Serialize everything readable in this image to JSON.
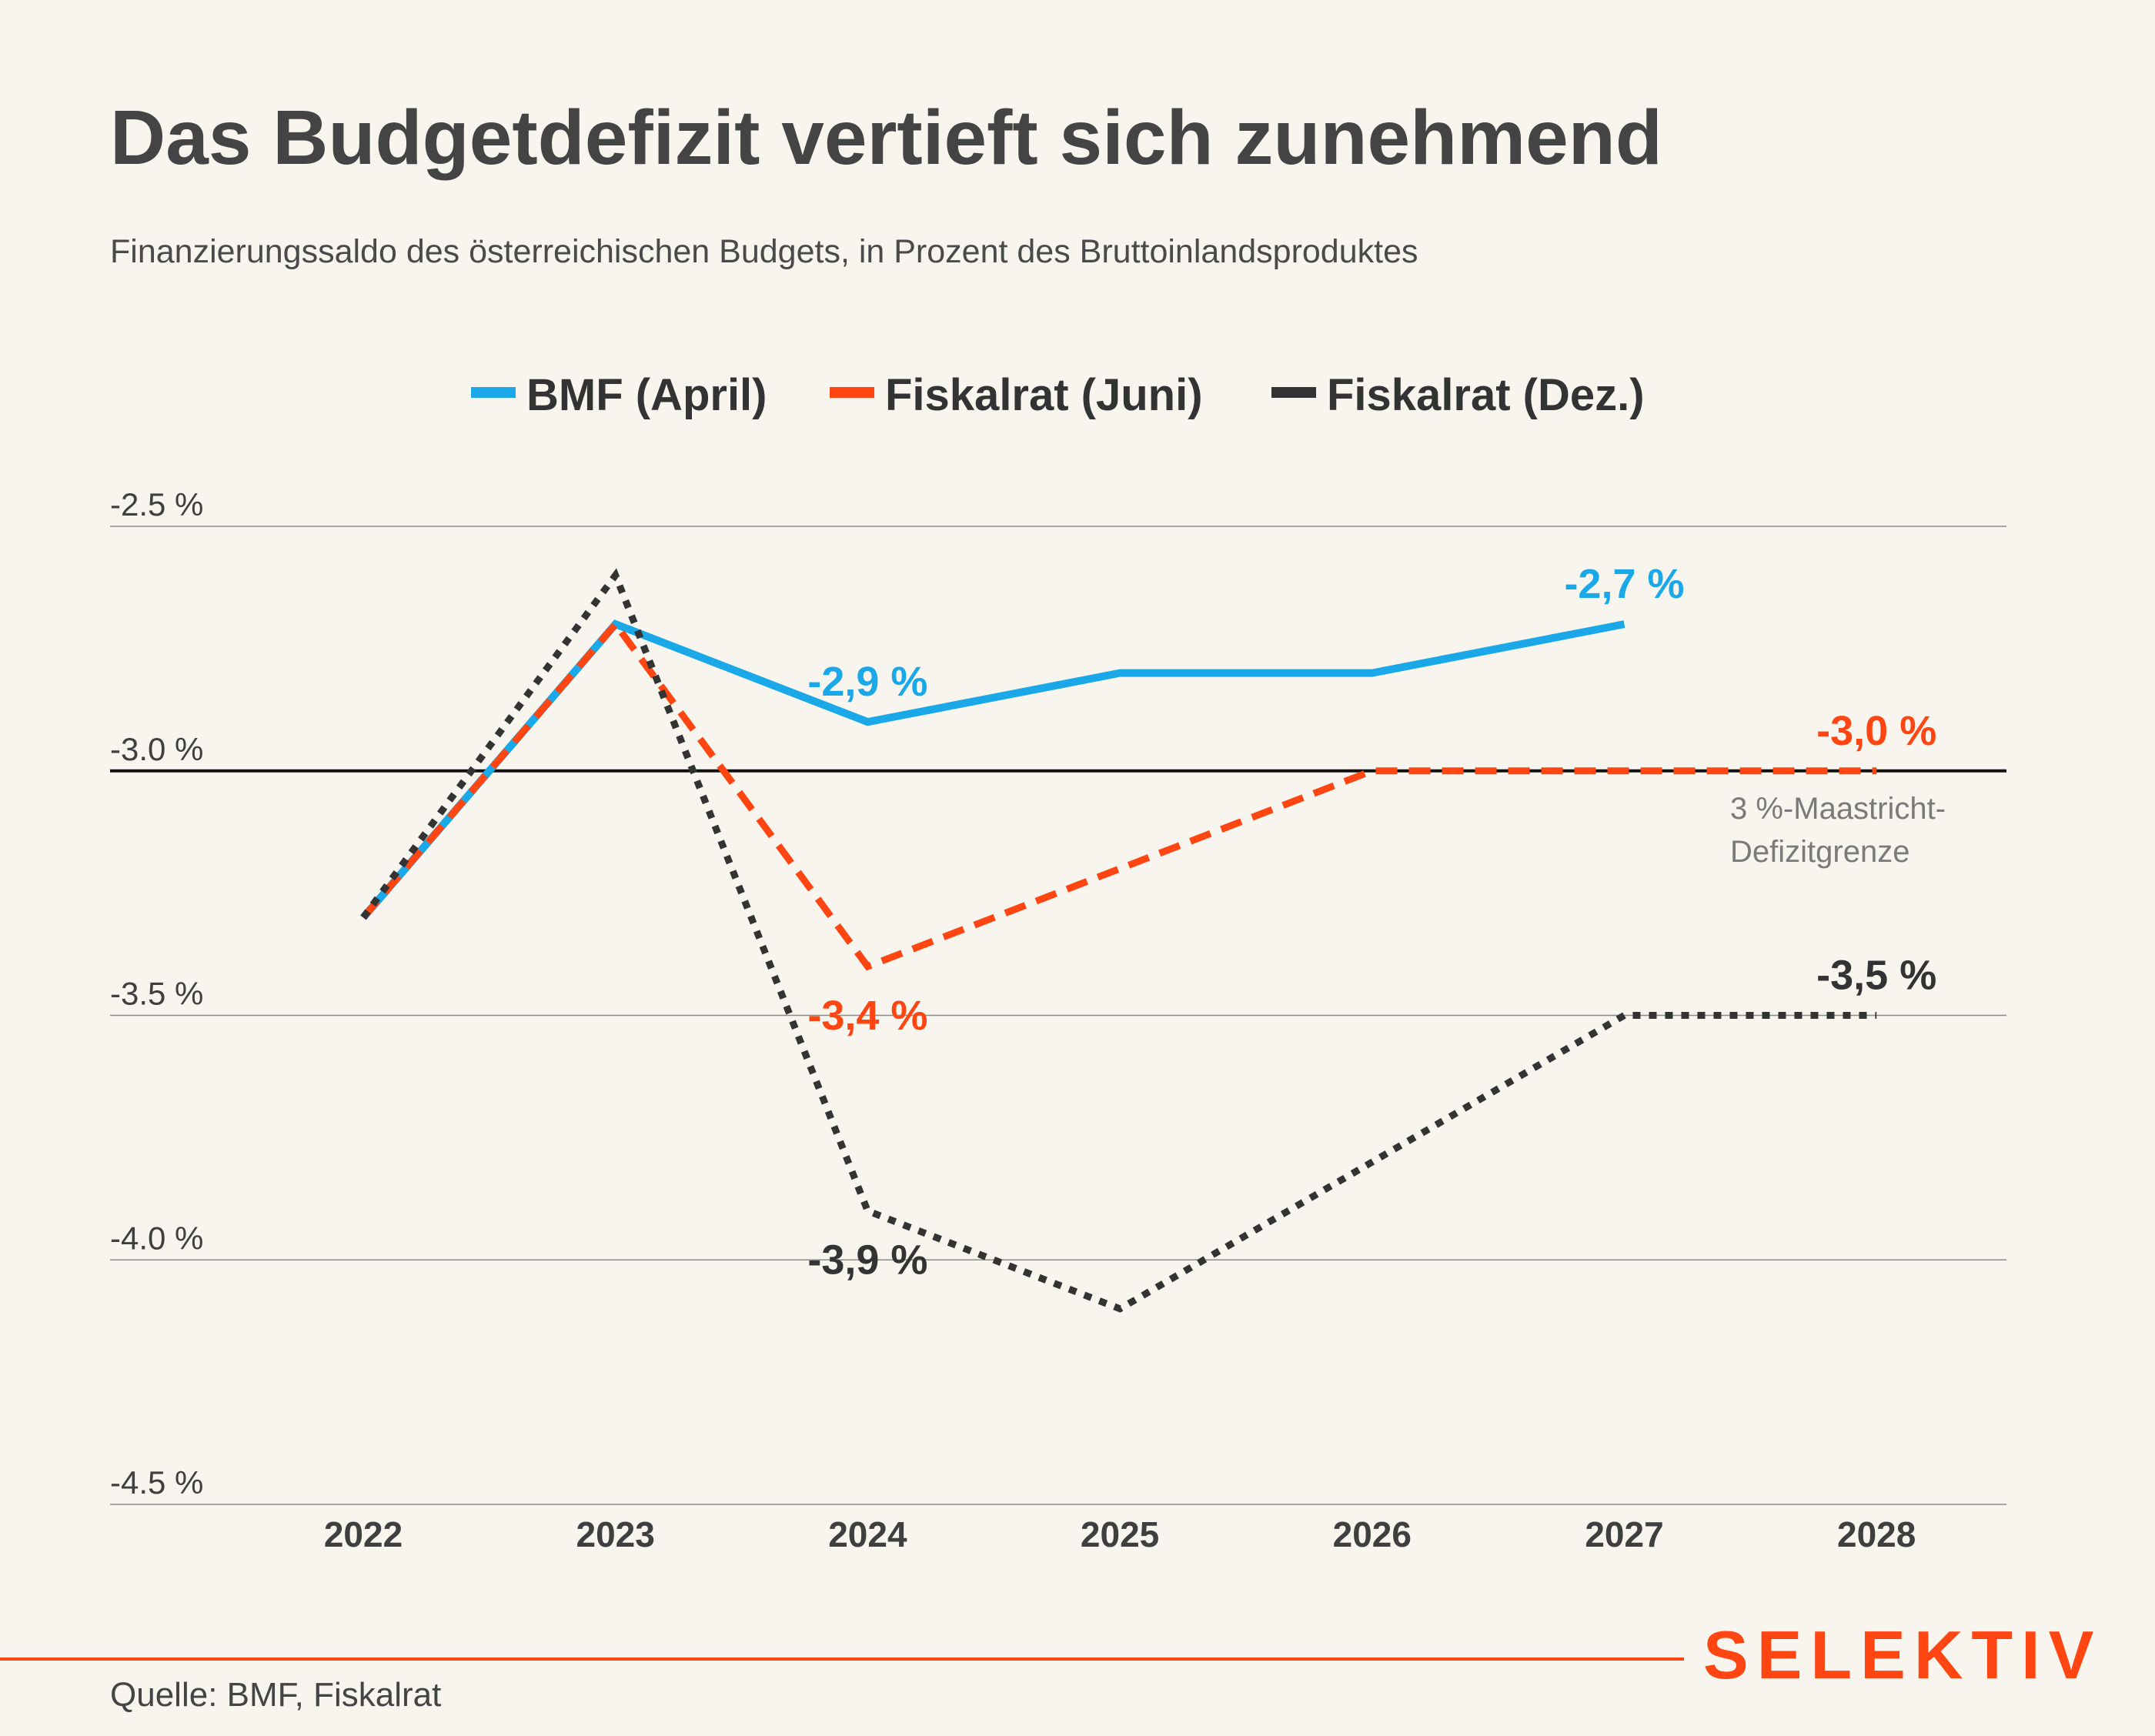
{
  "title": "Das Budgetdefizit vertieft sich zunehmend",
  "subtitle": "Finanzierungssaldo des österreichischen Budgets, in Prozent des Bruttoinlandsproduktes",
  "source": "Quelle: BMF, Fiskalrat",
  "brand": "SELEKTIV",
  "chart_data": {
    "type": "line",
    "title": "Das Budgetdefizit vertieft sich zunehmend",
    "x": [
      "2022",
      "2023",
      "2024",
      "2025",
      "2026",
      "2027",
      "2028"
    ],
    "ylim": [
      -4.5,
      -2.5
    ],
    "yticks": [
      -2.5,
      -3.0,
      -3.5,
      -4.0,
      -4.5
    ],
    "ytick_labels": [
      "-2.5 %",
      "-3.0 %",
      "-3.5 %",
      "-4.0 %",
      "-4.5 %"
    ],
    "grid": true,
    "legend_position": "top-center",
    "reference_line": {
      "value": -3.0,
      "label_lines": [
        "3 %-Maastricht-",
        "Defizitgrenze"
      ]
    },
    "series": [
      {
        "name": "BMF (April)",
        "color": "#1aa8e8",
        "style": "solid",
        "values": [
          -3.3,
          -2.7,
          -2.9,
          -2.8,
          -2.8,
          -2.7,
          null
        ]
      },
      {
        "name": "Fiskalrat (Juni)",
        "color": "#ff4612",
        "style": "dashed",
        "values": [
          -3.3,
          -2.7,
          -3.4,
          -3.2,
          -3.0,
          -3.0,
          -3.0
        ]
      },
      {
        "name": "Fiskalrat (Dez.)",
        "color": "#333333",
        "style": "dotted",
        "values": [
          -3.3,
          -2.6,
          -3.9,
          -4.1,
          -3.8,
          -3.5,
          -3.5
        ]
      }
    ],
    "annotations": [
      {
        "text": "-2,9 %",
        "series": 0,
        "x": "2024",
        "y": -2.9,
        "position": "above"
      },
      {
        "text": "-2,7 %",
        "series": 0,
        "x": "2027",
        "y": -2.7,
        "position": "above"
      },
      {
        "text": "-3,0 %",
        "series": 1,
        "x": "2028",
        "y": -3.0,
        "position": "above"
      },
      {
        "text": "-3,4 %",
        "series": 1,
        "x": "2024",
        "y": -3.4,
        "position": "below"
      },
      {
        "text": "-3,5 %",
        "series": 2,
        "x": "2028",
        "y": -3.5,
        "position": "above"
      },
      {
        "text": "-3,9 %",
        "series": 2,
        "x": "2024",
        "y": -3.9,
        "position": "below"
      }
    ]
  }
}
